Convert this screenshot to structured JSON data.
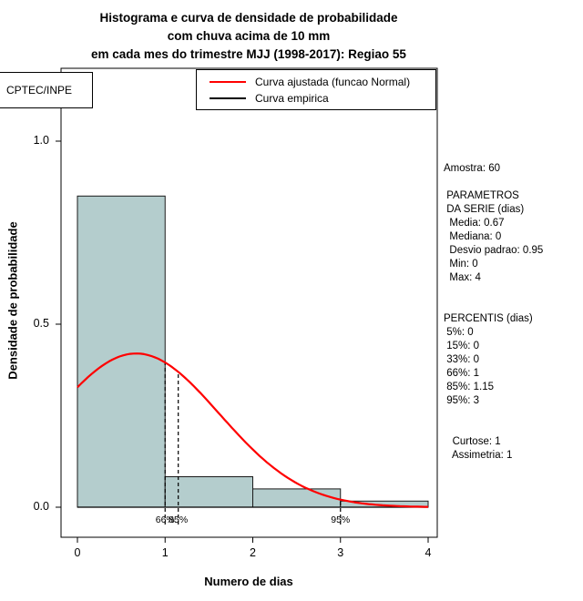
{
  "title": {
    "line1": "Histograma e curva de densidade de probabilidade",
    "line2": "com chuva acima de 10 mm",
    "line3": "em cada mes do trimestre MJJ (1998-2017): Regiao 55"
  },
  "watermark": "CPTEC/INPE",
  "legend": [
    {
      "label": "Curva ajustada (funcao Normal)",
      "color": "#ff0000"
    },
    {
      "label": "Curva empirica",
      "color": "#000000"
    }
  ],
  "stats_panel": {
    "lines": [
      "Amostra: 60",
      "",
      " PARAMETROS",
      " DA SERIE (dias)",
      "  Media: 0.67",
      "  Mediana: 0",
      "  Desvio padrao: 0.95",
      "  Min: 0",
      "  Max: 4",
      "",
      "",
      "PERCENTIS (dias)",
      " 5%: 0",
      " 15%: 0",
      " 33%: 0",
      " 66%: 1",
      " 85%: 1.15",
      " 95%: 3",
      "",
      "",
      "   Curtose: 1",
      "   Assimetria: 1"
    ]
  },
  "chart_data": {
    "type": "bar",
    "subtype": "histogram-with-density",
    "xlabel": "Numero de dias",
    "ylabel": "Densidade de probabilidade",
    "xlim": [
      0,
      4
    ],
    "ylim": [
      0,
      1.2
    ],
    "x_ticks": [
      0,
      1,
      2,
      3,
      4
    ],
    "y_ticks": [
      0,
      0.5,
      1
    ],
    "grid": false,
    "legend_position": "top-right-inside",
    "bars": {
      "breaks": [
        0,
        1,
        2,
        3,
        4
      ],
      "densities": [
        0.85,
        0.0833,
        0.05,
        0.0167
      ],
      "fill": "#b4cdcd",
      "stroke": "#1a1a1a"
    },
    "normal_curve": {
      "mean": 0.67,
      "sd": 0.95,
      "color": "#ff0000"
    },
    "percentile_markers": [
      {
        "label": "66%",
        "x": 1
      },
      {
        "label": "85%",
        "x": 1.15
      },
      {
        "label": "95%",
        "x": 3
      }
    ],
    "sample": {
      "amostra": 60,
      "media": 0.67,
      "mediana": 0,
      "desvio_padrao": 0.95,
      "min": 0,
      "max": 4,
      "percentis": {
        "5%": 0,
        "15%": 0,
        "33%": 0,
        "66%": 1,
        "85%": 1.15,
        "95%": 3
      },
      "curtose": 1,
      "assimetria": 1
    }
  }
}
